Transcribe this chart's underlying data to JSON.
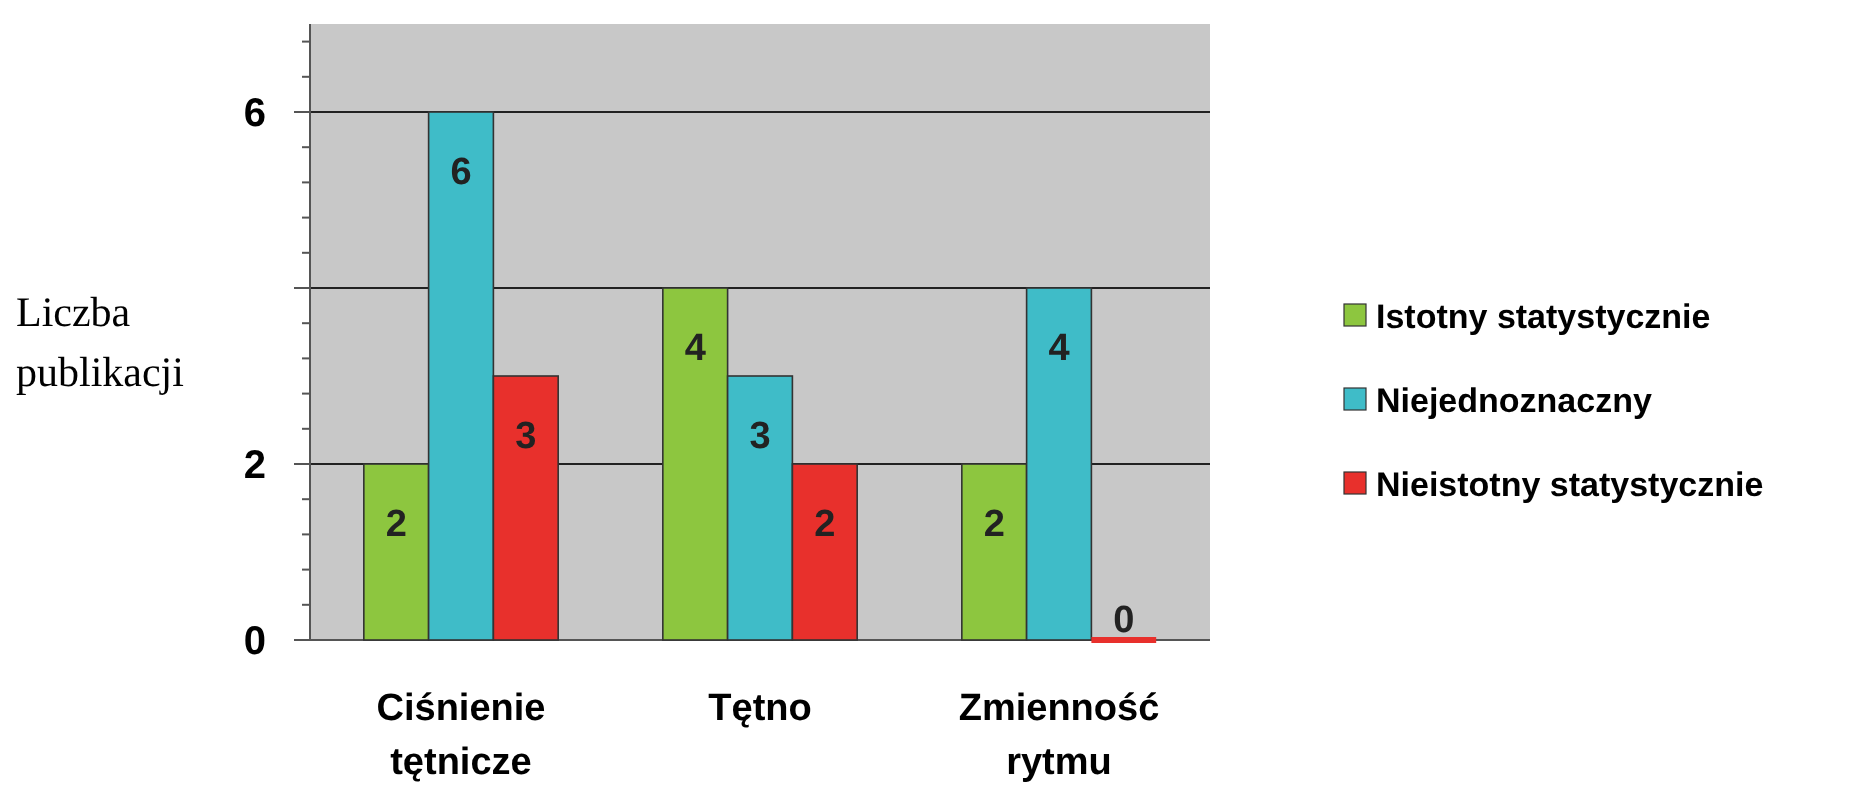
{
  "chart_data": {
    "type": "bar",
    "ylabel": "Liczba publikacji",
    "categories": [
      "Ciśnienie tętnicze",
      "Tętno",
      "Zmienność rytmu"
    ],
    "series": [
      {
        "name": "Istotny statystycznie",
        "color": "#8dc63f",
        "values": [
          2,
          4,
          2
        ]
      },
      {
        "name": "Niejednoznaczny",
        "color": "#3fbcc8",
        "values": [
          6,
          3,
          4
        ]
      },
      {
        "name": "Nieistotny statystycznie",
        "color": "#e8302c",
        "values": [
          3,
          2,
          0
        ]
      }
    ],
    "ylim": [
      0,
      7
    ],
    "yticks": [
      0,
      2,
      {
        "value": 4,
        "label": null
      },
      6
    ],
    "grid": "y",
    "legend": "right",
    "data_labels": true
  }
}
